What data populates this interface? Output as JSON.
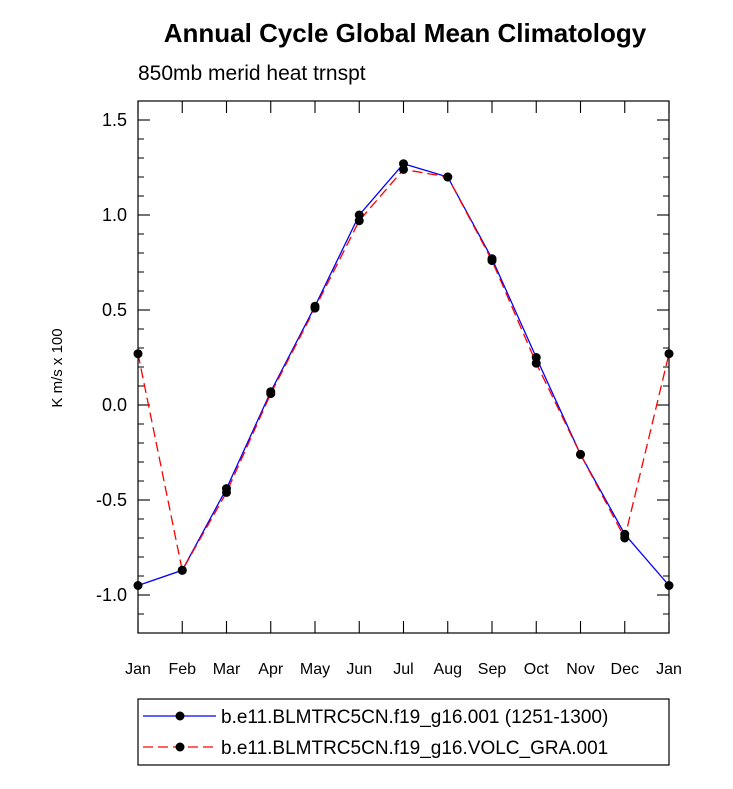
{
  "chart_data": {
    "type": "line",
    "title": "Annual Cycle Global Mean Climatology",
    "subtitle": "850mb merid heat trnspt",
    "xlabel": "",
    "ylabel": "K m/s x 100",
    "categories": [
      "Jan",
      "Feb",
      "Mar",
      "Apr",
      "May",
      "Jun",
      "Jul",
      "Aug",
      "Sep",
      "Oct",
      "Nov",
      "Dec",
      "Jan"
    ],
    "ylim": [
      -1.2,
      1.6
    ],
    "yticks": [
      -1.0,
      -0.5,
      0.0,
      0.5,
      1.0,
      1.5
    ],
    "ytick_labels": [
      "-1.0",
      "-0.5",
      "0.0",
      "0.5",
      "1.0",
      "1.5"
    ],
    "series": [
      {
        "name": "b.e11.BLMTRC5CN.f19_g16.001 (1251-1300)",
        "color": "#0000ff",
        "style": "solid",
        "values": [
          -0.95,
          -0.87,
          -0.44,
          0.07,
          0.52,
          1.0,
          1.27,
          1.2,
          0.77,
          0.25,
          -0.26,
          -0.68,
          -0.95
        ]
      },
      {
        "name": "b.e11.BLMTRC5CN.f19_g16.VOLC_GRA.001",
        "color": "#ff0000",
        "style": "dashed",
        "values": [
          0.27,
          -0.87,
          -0.46,
          0.06,
          0.51,
          0.97,
          1.24,
          1.2,
          0.76,
          0.22,
          -0.26,
          -0.7,
          0.27
        ]
      }
    ],
    "legend_position": "bottom"
  }
}
